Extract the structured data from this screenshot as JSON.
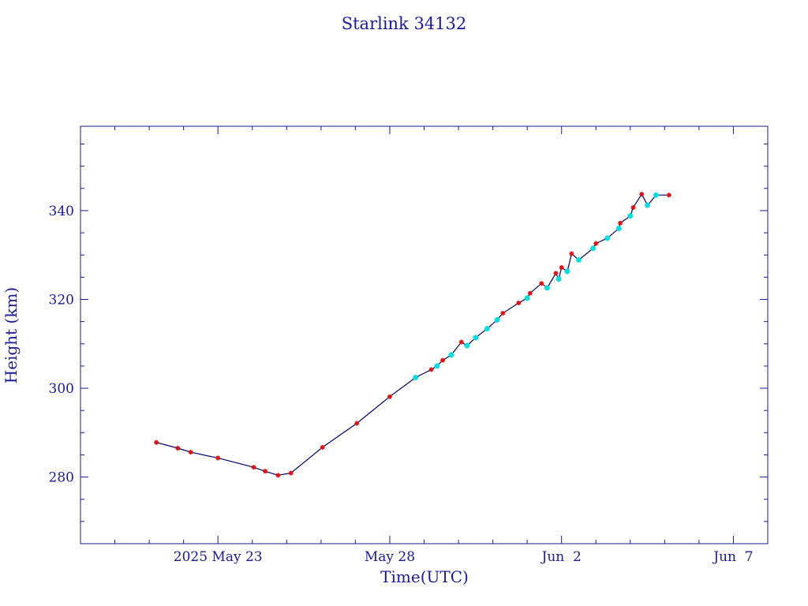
{
  "chart_data": {
    "type": "line",
    "title": "Starlink 34132",
    "xlabel": "Time(UTC)",
    "ylabel": "Height (km)",
    "x_tick_labels": [
      "2025 May 23",
      "May 28",
      "Jun  2",
      "Jun  7"
    ],
    "x_ticks": [
      "2025-05-23",
      "2025-05-28",
      "2025-06-02",
      "2025-06-07"
    ],
    "y_ticks": [
      280,
      300,
      320,
      340
    ],
    "xlim": [
      "2025-05-19T00:00",
      "2025-06-08T00:00"
    ],
    "ylim": [
      265,
      359
    ],
    "grid": false,
    "colors": {
      "axis": "#1a1a99",
      "line": "#000066",
      "marker_primary": "#dd1111",
      "marker_secondary": "#00dddd"
    },
    "series": [
      {
        "marker": "star",
        "color": "#dd1111",
        "x": [
          "2025-05-21T05:00",
          "2025-05-21T20:00",
          "2025-05-22T05:00",
          "2025-05-23T00:00",
          "2025-05-24T01:00",
          "2025-05-24T09:00",
          "2025-05-24T18:00",
          "2025-05-25T03:00",
          "2025-05-26T01:00",
          "2025-05-27T01:00",
          "2025-05-28T00:00",
          "2025-05-29T05:00",
          "2025-05-29T13:00",
          "2025-05-30T02:00",
          "2025-05-31T07:00",
          "2025-05-31T18:00",
          "2025-06-01T02:00",
          "2025-06-01T10:00",
          "2025-06-01T20:00",
          "2025-06-02T00:00",
          "2025-06-02T07:00",
          "2025-06-03T00:00",
          "2025-06-03T17:00",
          "2025-06-04T02:00",
          "2025-06-04T08:00",
          "2025-06-05T03:00"
        ],
        "y": [
          287.8,
          286.5,
          285.6,
          284.3,
          282.2,
          281.3,
          280.4,
          280.9,
          286.7,
          292.1,
          298.1,
          304.2,
          306.3,
          310.4,
          316.9,
          319.2,
          321.4,
          323.6,
          325.9,
          327.2,
          330.3,
          332.6,
          337.2,
          340.7,
          343.7,
          343.5
        ]
      },
      {
        "marker": "star",
        "color": "#00dddd",
        "x": [
          "2025-05-28T18:00",
          "2025-05-29T09:00",
          "2025-05-29T19:00",
          "2025-05-30T06:00",
          "2025-05-30T12:00",
          "2025-05-30T20:00",
          "2025-05-31T03:00",
          "2025-06-01T00:00",
          "2025-06-01T14:00",
          "2025-06-01T22:00",
          "2025-06-02T04:00",
          "2025-06-02T12:00",
          "2025-06-02T22:00",
          "2025-06-03T08:00",
          "2025-06-03T16:00",
          "2025-06-04T00:00",
          "2025-06-04T12:00",
          "2025-06-04T18:00"
        ],
        "y": [
          302.4,
          305.0,
          307.5,
          309.6,
          311.4,
          313.4,
          315.4,
          320.3,
          322.6,
          324.6,
          326.3,
          328.9,
          331.5,
          333.8,
          336.0,
          338.8,
          341.2,
          343.5
        ]
      }
    ]
  }
}
